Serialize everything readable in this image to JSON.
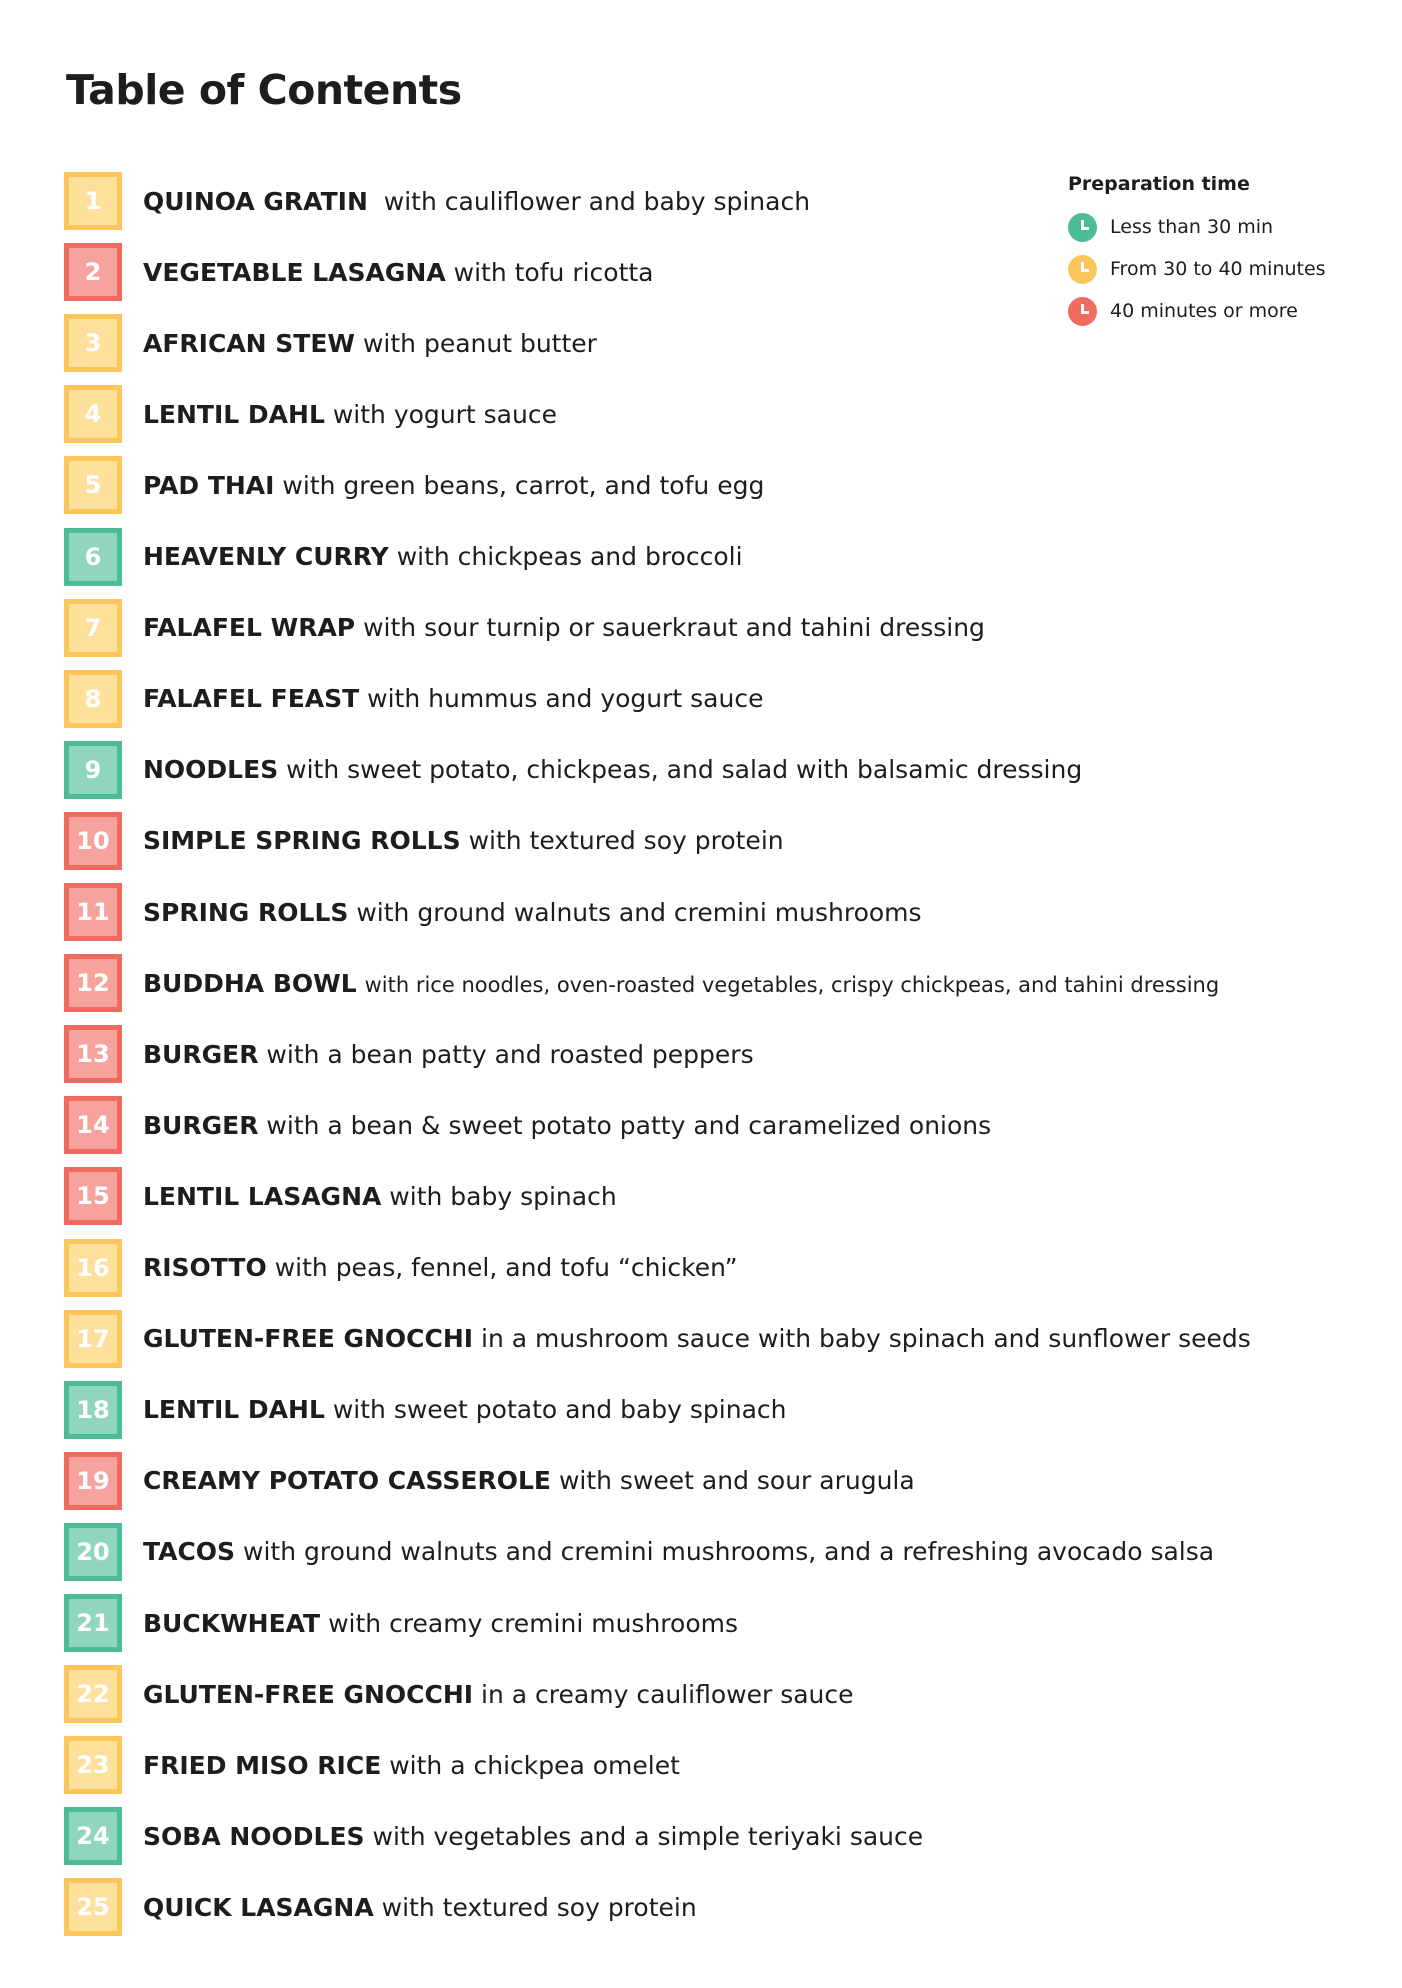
{
  "title": "Table of Contents",
  "legend": {
    "title": "Preparation time",
    "items": [
      {
        "label": "Less than 30 min",
        "color": "#4cbb98",
        "icon": "clock-icon"
      },
      {
        "label": "From 30 to 40 minutes",
        "color": "#fdc65a",
        "icon": "clock-icon"
      },
      {
        "label": "40 minutes or more",
        "color": "#f06a60",
        "icon": "clock-icon"
      }
    ]
  },
  "items": [
    {
      "num": "1",
      "name": "QUINOA GRATIN",
      "desc": "with cauliflower and baby spinach",
      "time": "30-40"
    },
    {
      "num": "2",
      "name": "VEGETABLE LASAGNA",
      "desc": "with tofu ricotta",
      "time": "40+"
    },
    {
      "num": "3",
      "name": "AFRICAN STEW",
      "desc": "with peanut butter",
      "time": "30-40"
    },
    {
      "num": "4",
      "name": "LENTIL DAHL",
      "desc": "with yogurt sauce",
      "time": "30-40"
    },
    {
      "num": "5",
      "name": "PAD THAI",
      "desc": "with green beans, carrot, and tofu egg",
      "time": "30-40"
    },
    {
      "num": "6",
      "name": "HEAVENLY CURRY",
      "desc": "with chickpeas and broccoli",
      "time": "<30"
    },
    {
      "num": "7",
      "name": "FALAFEL WRAP",
      "desc": "with sour turnip or sauerkraut and tahini dressing",
      "time": "30-40"
    },
    {
      "num": "8",
      "name": "FALAFEL FEAST",
      "desc": "with hummus and yogurt sauce",
      "time": "30-40"
    },
    {
      "num": "9",
      "name": "NOODLES",
      "desc": "with sweet potato, chickpeas, and salad with balsamic dressing",
      "time": "<30"
    },
    {
      "num": "10",
      "name": "SIMPLE SPRING ROLLS",
      "desc": "with textured soy protein",
      "time": "40+"
    },
    {
      "num": "11",
      "name": "SPRING ROLLS",
      "desc": "with ground walnuts and cremini mushrooms",
      "time": "40+"
    },
    {
      "num": "12",
      "name": "BUDDHA BOWL",
      "desc": "with rice noodles, oven-roasted vegetables, crispy chickpeas, and tahini dressing",
      "time": "40+"
    },
    {
      "num": "13",
      "name": "BURGER",
      "desc": "with a bean patty and roasted peppers",
      "time": "40+"
    },
    {
      "num": "14",
      "name": "BURGER",
      "desc": "with a bean & sweet potato patty and caramelized onions",
      "time": "40+"
    },
    {
      "num": "15",
      "name": "LENTIL LASAGNA",
      "desc": "with baby spinach",
      "time": "40+"
    },
    {
      "num": "16",
      "name": "RISOTTO",
      "desc": "with peas, fennel, and tofu “chicken”",
      "time": "30-40"
    },
    {
      "num": "17",
      "name": "GLUTEN-FREE GNOCCHI",
      "desc": "in a mushroom sauce with baby spinach and sunflower seeds",
      "time": "30-40"
    },
    {
      "num": "18",
      "name": "LENTIL DAHL",
      "desc": "with sweet potato and baby spinach",
      "time": "<30"
    },
    {
      "num": "19",
      "name": "CREAMY POTATO CASSEROLE",
      "desc": "with sweet and sour arugula",
      "time": "40+"
    },
    {
      "num": "20",
      "name": "TACOS",
      "desc": "with ground walnuts and cremini mushrooms, and a refreshing avocado salsa",
      "time": "<30"
    },
    {
      "num": "21",
      "name": "BUCKWHEAT",
      "desc": "with creamy cremini mushrooms",
      "time": "<30"
    },
    {
      "num": "22",
      "name": "GLUTEN-FREE GNOCCHI",
      "desc": "in a creamy cauliflower sauce",
      "time": "30-40"
    },
    {
      "num": "23",
      "name": "FRIED MISO RICE",
      "desc": "with a chickpea omelet",
      "time": "30-40"
    },
    {
      "num": "24",
      "name": "SOBA NOODLES",
      "desc": "with vegetables and a simple teriyaki sauce",
      "time": "<30"
    },
    {
      "num": "25",
      "name": "QUICK LASAGNA",
      "desc": "with textured soy protein",
      "time": "30-40"
    }
  ]
}
